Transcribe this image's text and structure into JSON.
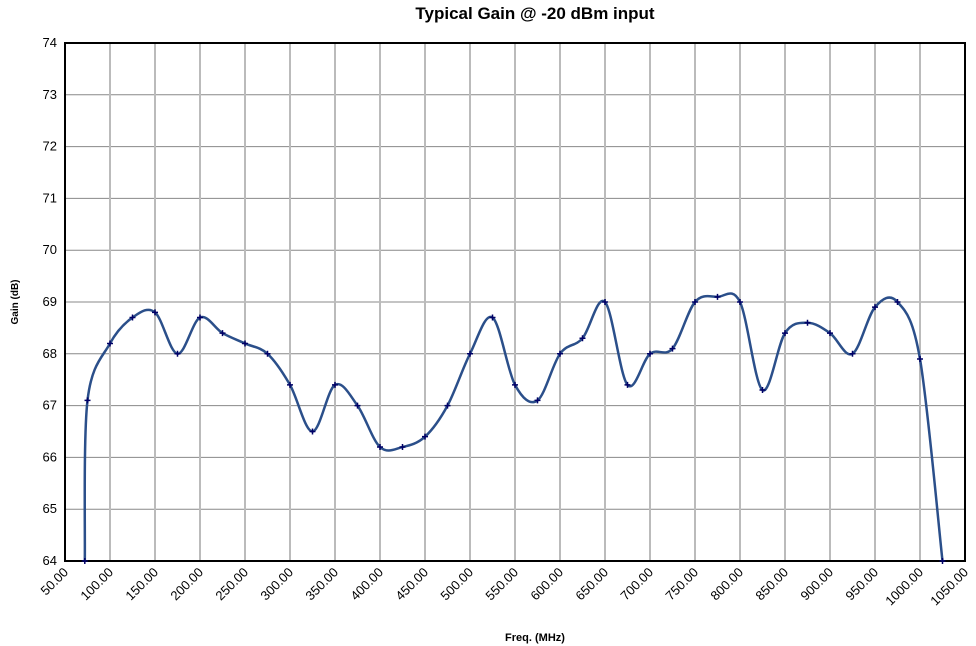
{
  "chart_data": {
    "type": "line",
    "title": "Typical Gain @ -20 dBm input",
    "x_label": "Freq. (MHz)",
    "y_label": "Gain (dB)",
    "x": [
      72,
      75,
      100,
      125,
      150,
      175,
      200,
      225,
      250,
      275,
      300,
      325,
      350,
      375,
      400,
      425,
      450,
      475,
      500,
      525,
      550,
      575,
      600,
      625,
      650,
      675,
      700,
      725,
      750,
      775,
      800,
      825,
      850,
      875,
      900,
      925,
      950,
      975,
      1000,
      1025
    ],
    "series": [
      {
        "color": "#2b4f8a",
        "values": [
          64.0,
          67.1,
          68.2,
          68.7,
          68.8,
          68.0,
          68.7,
          68.4,
          68.2,
          68.0,
          67.4,
          66.5,
          67.4,
          67.0,
          66.2,
          66.2,
          66.4,
          67.0,
          68.0,
          68.7,
          67.4,
          67.1,
          68.0,
          68.3,
          69.0,
          67.4,
          68.0,
          68.1,
          69.0,
          69.1,
          69.0,
          67.3,
          68.4,
          68.6,
          68.4,
          68.0,
          68.9,
          69.0,
          67.9,
          64.0
        ]
      }
    ],
    "xlim": [
      50,
      1050
    ],
    "ylim": [
      64,
      74
    ],
    "xticks": [
      {
        "value": 50,
        "label": "50.00"
      },
      {
        "value": 100,
        "label": "100.00"
      },
      {
        "value": 150,
        "label": "150.00"
      },
      {
        "value": 200,
        "label": "200.00"
      },
      {
        "value": 250,
        "label": "250.00"
      },
      {
        "value": 300,
        "label": "300.00"
      },
      {
        "value": 350,
        "label": "350.00"
      },
      {
        "value": 400,
        "label": "400.00"
      },
      {
        "value": 450,
        "label": "450.00"
      },
      {
        "value": 500,
        "label": "500.00"
      },
      {
        "value": 550,
        "label": "550.00"
      },
      {
        "value": 600,
        "label": "600.00"
      },
      {
        "value": 650,
        "label": "650.00"
      },
      {
        "value": 700,
        "label": "700.00"
      },
      {
        "value": 750,
        "label": "750.00"
      },
      {
        "value": 800,
        "label": "800.00"
      },
      {
        "value": 850,
        "label": "850.00"
      },
      {
        "value": 900,
        "label": "900.00"
      },
      {
        "value": 950,
        "label": "950.00"
      },
      {
        "value": 1000,
        "label": "1000.00"
      },
      {
        "value": 1050,
        "label": "1050.00"
      }
    ],
    "yticks": [
      64,
      65,
      66,
      67,
      68,
      69,
      70,
      71,
      72,
      73,
      74
    ],
    "grid": true,
    "marker_color": "#000066"
  }
}
